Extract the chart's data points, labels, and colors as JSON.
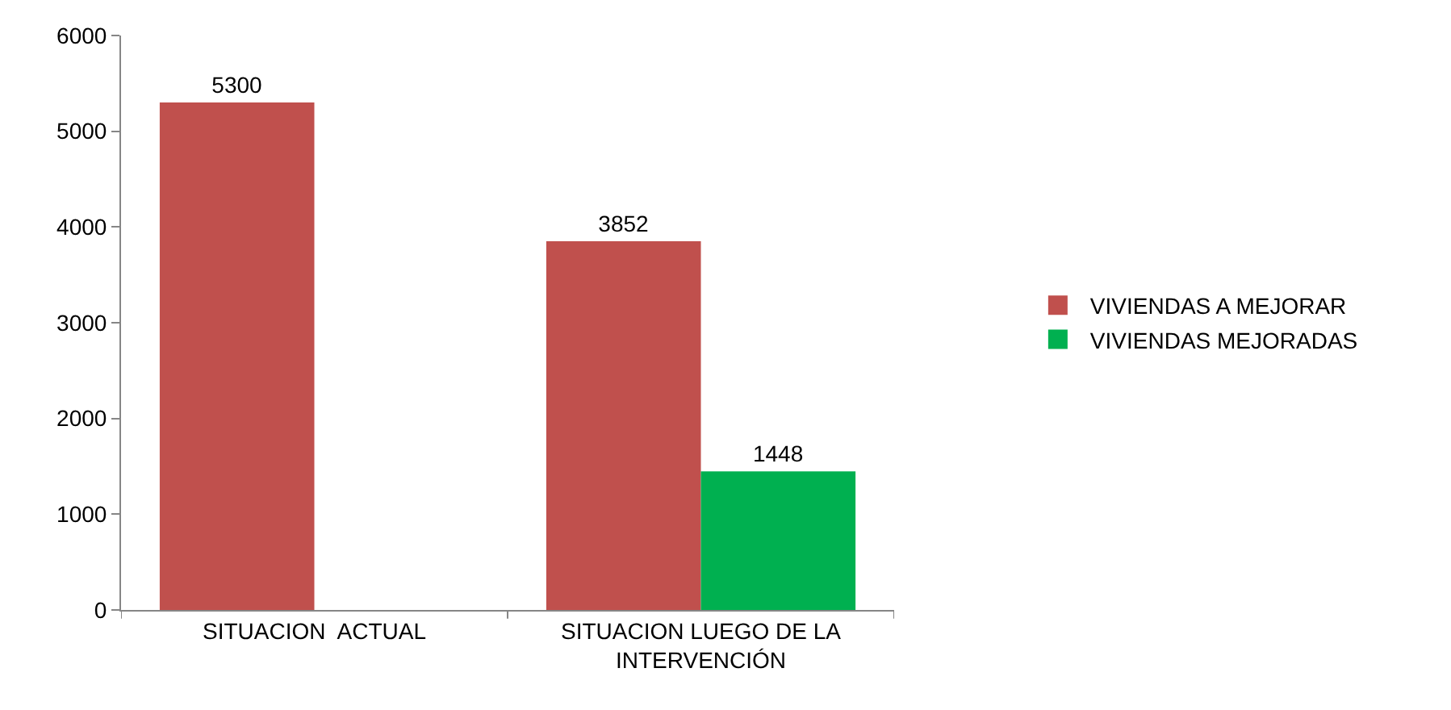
{
  "chart_data": {
    "type": "bar",
    "categories": [
      "SITUACION  ACTUAL",
      "SITUACION LUEGO DE LA INTERVENCIÓN"
    ],
    "series": [
      {
        "name": "VIVIENDAS A MEJORAR",
        "color": "#c0504d",
        "values": [
          5300,
          3852
        ]
      },
      {
        "name": "VIVIENDAS MEJORADAS",
        "color": "#00b050",
        "values": [
          null,
          1448
        ]
      }
    ],
    "ylim": [
      0,
      6000
    ],
    "yticks": [
      0,
      1000,
      2000,
      3000,
      4000,
      5000,
      6000
    ],
    "data_labels": true,
    "grid": false,
    "legend": "right"
  }
}
